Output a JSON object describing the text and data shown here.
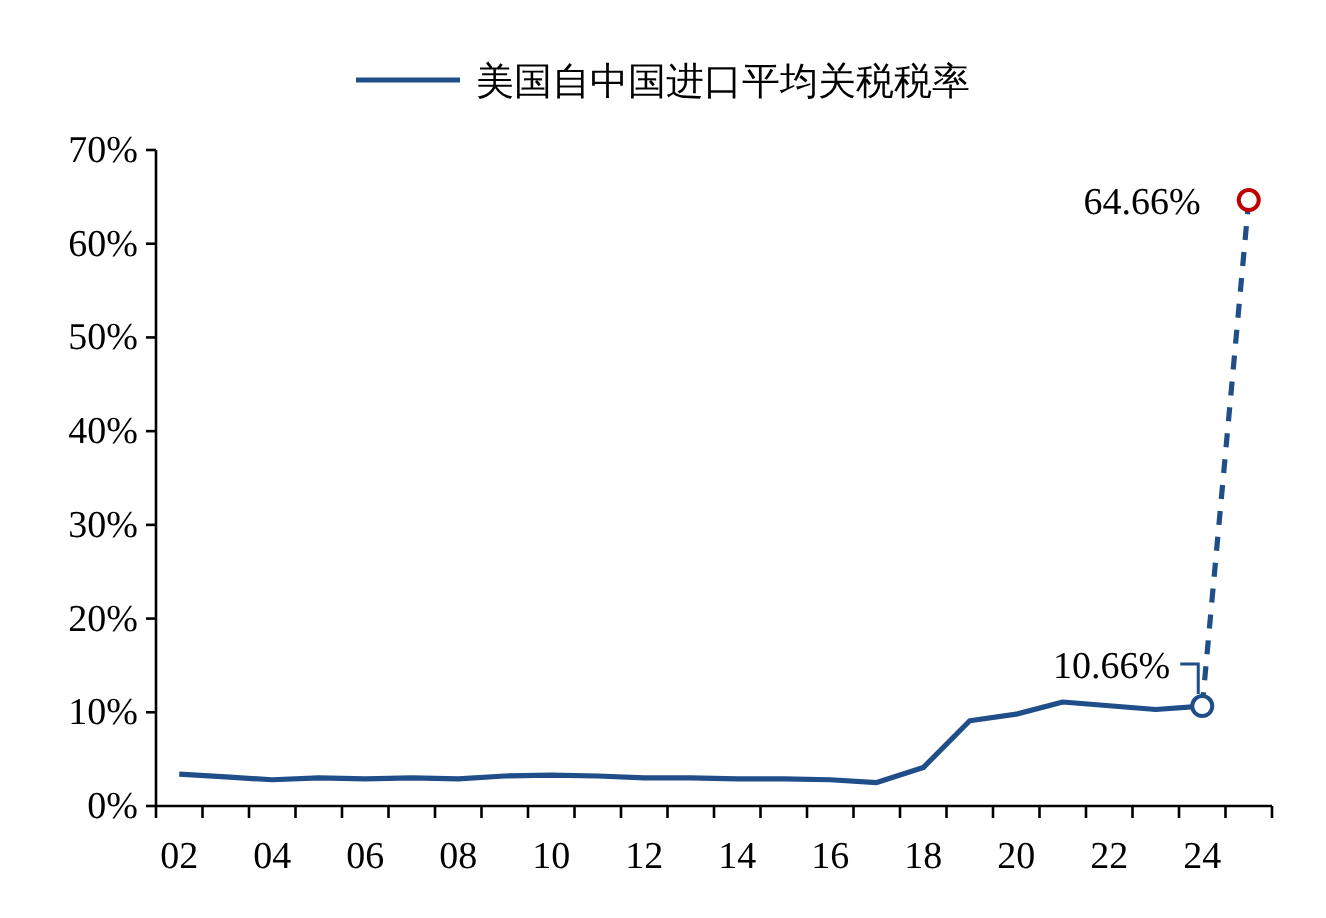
{
  "chart_data": {
    "type": "line",
    "categories": [
      "02",
      null,
      "04",
      null,
      "06",
      null,
      "08",
      null,
      "10",
      null,
      "12",
      null,
      "14",
      null,
      "16",
      null,
      "18",
      null,
      "20",
      null,
      "22",
      null,
      "24",
      null
    ],
    "series": [
      {
        "name": "美国自中国进口平均关税税率",
        "color": "#1f4e89",
        "line_style": "solid",
        "marker": "none",
        "values": [
          3.4,
          3.1,
          2.8,
          3.0,
          2.9,
          3.0,
          2.9,
          3.2,
          3.3,
          3.2,
          3.0,
          3.0,
          2.9,
          2.9,
          2.8,
          2.5,
          4.1,
          9.1,
          9.8,
          11.1,
          10.7,
          10.3,
          10.66,
          null
        ]
      },
      {
        "color": "#1f4e89",
        "line_style": "dashed",
        "marker": "circle",
        "colors": [
          null,
          null,
          null,
          null,
          null,
          null,
          null,
          null,
          null,
          null,
          null,
          null,
          null,
          null,
          null,
          null,
          null,
          null,
          null,
          null,
          null,
          null,
          "#1f4e89",
          "#c00000"
        ],
        "values": [
          null,
          null,
          null,
          null,
          null,
          null,
          null,
          null,
          null,
          null,
          null,
          null,
          null,
          null,
          null,
          null,
          null,
          null,
          null,
          null,
          null,
          null,
          10.66,
          64.66
        ],
        "value_labels": [
          null,
          null,
          null,
          null,
          null,
          null,
          null,
          null,
          null,
          null,
          null,
          null,
          null,
          null,
          null,
          null,
          null,
          null,
          null,
          null,
          null,
          null,
          "10.66%",
          "64.66%"
        ]
      }
    ],
    "ylim": [
      0,
      70
    ],
    "yticks": [
      {
        "value": 0,
        "label": "0%"
      },
      {
        "value": 10,
        "label": "10%"
      },
      {
        "value": 20,
        "label": "20%"
      },
      {
        "value": 30,
        "label": "30%"
      },
      {
        "value": 40,
        "label": "40%"
      },
      {
        "value": 50,
        "label": "50%"
      },
      {
        "value": 60,
        "label": "60%"
      },
      {
        "value": 70,
        "label": "70%"
      }
    ],
    "grid": false,
    "legend": "top"
  }
}
